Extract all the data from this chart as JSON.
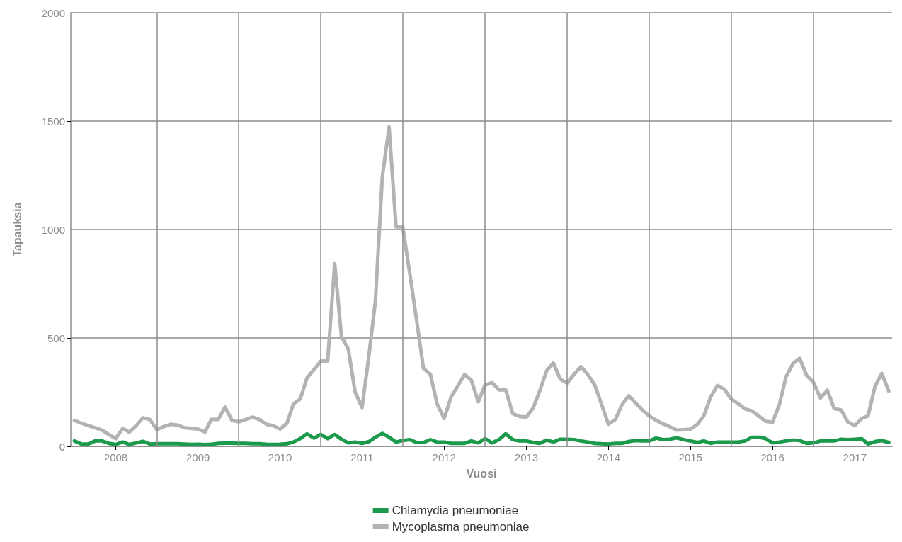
{
  "chart_data": {
    "type": "line",
    "xlabel": "Vuosi",
    "ylabel": "Tapauksia",
    "x": [
      "2007-07",
      "2007-08",
      "2007-09",
      "2007-10",
      "2007-11",
      "2007-12",
      "2008-01",
      "2008-02",
      "2008-03",
      "2008-04",
      "2008-05",
      "2008-06",
      "2008-07",
      "2008-08",
      "2008-09",
      "2008-10",
      "2008-11",
      "2008-12",
      "2009-01",
      "2009-02",
      "2009-03",
      "2009-04",
      "2009-05",
      "2009-06",
      "2009-07",
      "2009-08",
      "2009-09",
      "2009-10",
      "2009-11",
      "2009-12",
      "2010-01",
      "2010-02",
      "2010-03",
      "2010-04",
      "2010-05",
      "2010-06",
      "2010-07",
      "2010-08",
      "2010-09",
      "2010-10",
      "2010-11",
      "2010-12",
      "2011-01",
      "2011-02",
      "2011-03",
      "2011-04",
      "2011-05",
      "2011-06",
      "2011-07",
      "2011-08",
      "2011-09",
      "2011-10",
      "2011-11",
      "2011-12",
      "2012-01",
      "2012-02",
      "2012-03",
      "2012-04",
      "2012-05",
      "2012-06",
      "2012-07",
      "2012-08",
      "2012-09",
      "2012-10",
      "2012-11",
      "2012-12",
      "2013-01",
      "2013-02",
      "2013-03",
      "2013-04",
      "2013-05",
      "2013-06",
      "2013-07",
      "2013-08",
      "2013-09",
      "2013-10",
      "2013-11",
      "2013-12",
      "2014-01",
      "2014-02",
      "2014-03",
      "2014-04",
      "2014-05",
      "2014-06",
      "2014-07",
      "2014-08",
      "2014-09",
      "2014-10",
      "2014-11",
      "2014-12",
      "2015-01",
      "2015-02",
      "2015-03",
      "2015-04",
      "2015-05",
      "2015-06",
      "2015-07",
      "2015-08",
      "2015-09",
      "2015-10",
      "2015-11",
      "2015-12",
      "2016-01",
      "2016-02",
      "2016-03",
      "2016-04",
      "2016-05",
      "2016-06",
      "2016-07",
      "2016-08",
      "2016-09",
      "2016-10",
      "2016-11",
      "2016-12",
      "2017-01",
      "2017-02",
      "2017-03",
      "2017-04",
      "2017-05",
      "2017-06"
    ],
    "series": [
      {
        "name": "Chlamydia pneumoniae",
        "color": "#1a9a4a",
        "values": [
          25,
          11,
          11,
          25,
          25,
          14,
          9,
          20,
          9,
          16,
          23,
          11,
          12,
          12,
          12,
          12,
          11,
          9,
          10,
          8,
          10,
          14,
          15,
          15,
          14,
          14,
          12,
          12,
          10,
          9,
          10,
          12,
          20,
          36,
          58,
          38,
          55,
          36,
          55,
          33,
          16,
          20,
          14,
          22,
          42,
          60,
          42,
          20,
          27,
          31,
          18,
          18,
          31,
          20,
          20,
          14,
          14,
          14,
          25,
          16,
          36,
          16,
          31,
          58,
          31,
          25,
          25,
          18,
          14,
          29,
          20,
          33,
          33,
          31,
          25,
          20,
          14,
          12,
          11,
          14,
          14,
          22,
          27,
          25,
          25,
          38,
          31,
          33,
          39,
          31,
          25,
          18,
          25,
          14,
          20,
          20,
          20,
          20,
          25,
          42,
          42,
          36,
          16,
          20,
          25,
          29,
          27,
          14,
          16,
          25,
          25,
          25,
          33,
          31,
          33,
          35,
          11,
          22,
          27,
          18
        ]
      },
      {
        "name": "Mycoplasma pneumoniae",
        "color": "#b3b3b3",
        "values": [
          120,
          107,
          96,
          86,
          75,
          55,
          36,
          83,
          66,
          96,
          132,
          124,
          77,
          91,
          102,
          99,
          86,
          83,
          80,
          66,
          124,
          124,
          181,
          120,
          113,
          124,
          135,
          124,
          102,
          96,
          80,
          107,
          195,
          219,
          316,
          354,
          393,
          395,
          842,
          508,
          447,
          250,
          179,
          425,
          667,
          1242,
          1473,
          1012,
          1012,
          798,
          579,
          360,
          332,
          195,
          129,
          228,
          277,
          332,
          305,
          206,
          283,
          294,
          261,
          261,
          151,
          138,
          135,
          179,
          255,
          349,
          384,
          310,
          292,
          332,
          368,
          332,
          283,
          195,
          102,
          124,
          190,
          234,
          201,
          168,
          140,
          121,
          104,
          91,
          75,
          77,
          79,
          102,
          140,
          228,
          281,
          263,
          219,
          197,
          173,
          164,
          140,
          116,
          111,
          195,
          321,
          382,
          406,
          327,
          296,
          223,
          259,
          175,
          168,
          113,
          96,
          129,
          140,
          277,
          336,
          255
        ]
      }
    ],
    "xlim": [
      "2007-06-15",
      "2017-06-16"
    ],
    "xticks": [
      {
        "value": "2008-01-01",
        "label": "2008"
      },
      {
        "value": "2009-01-01",
        "label": "2009"
      },
      {
        "value": "2010-01-01",
        "label": "2010"
      },
      {
        "value": "2011-01-01",
        "label": "2011"
      },
      {
        "value": "2012-01-01",
        "label": "2012"
      },
      {
        "value": "2013-01-01",
        "label": "2013"
      },
      {
        "value": "2014-01-01",
        "label": "2014"
      },
      {
        "value": "2015-01-01",
        "label": "2015"
      },
      {
        "value": "2016-01-01",
        "label": "2016"
      },
      {
        "value": "2017-01-01",
        "label": "2017"
      },
      {
        "value": "2008-07-01",
        "label": null
      },
      {
        "value": "2009-07-01",
        "label": null
      },
      {
        "value": "2010-07-01",
        "label": null
      },
      {
        "value": "2011-07-01",
        "label": null
      },
      {
        "value": "2012-07-01",
        "label": null
      },
      {
        "value": "2013-07-01",
        "label": null
      },
      {
        "value": "2014-07-01",
        "label": null
      },
      {
        "value": "2015-07-01",
        "label": null
      },
      {
        "value": "2016-07-01",
        "label": null
      }
    ],
    "ylim": [
      0,
      2000
    ],
    "yticks": [
      0,
      500,
      1000,
      1500,
      2000
    ],
    "grid": true,
    "legend": "bottom",
    "marker": "none",
    "line_style": "solid"
  }
}
